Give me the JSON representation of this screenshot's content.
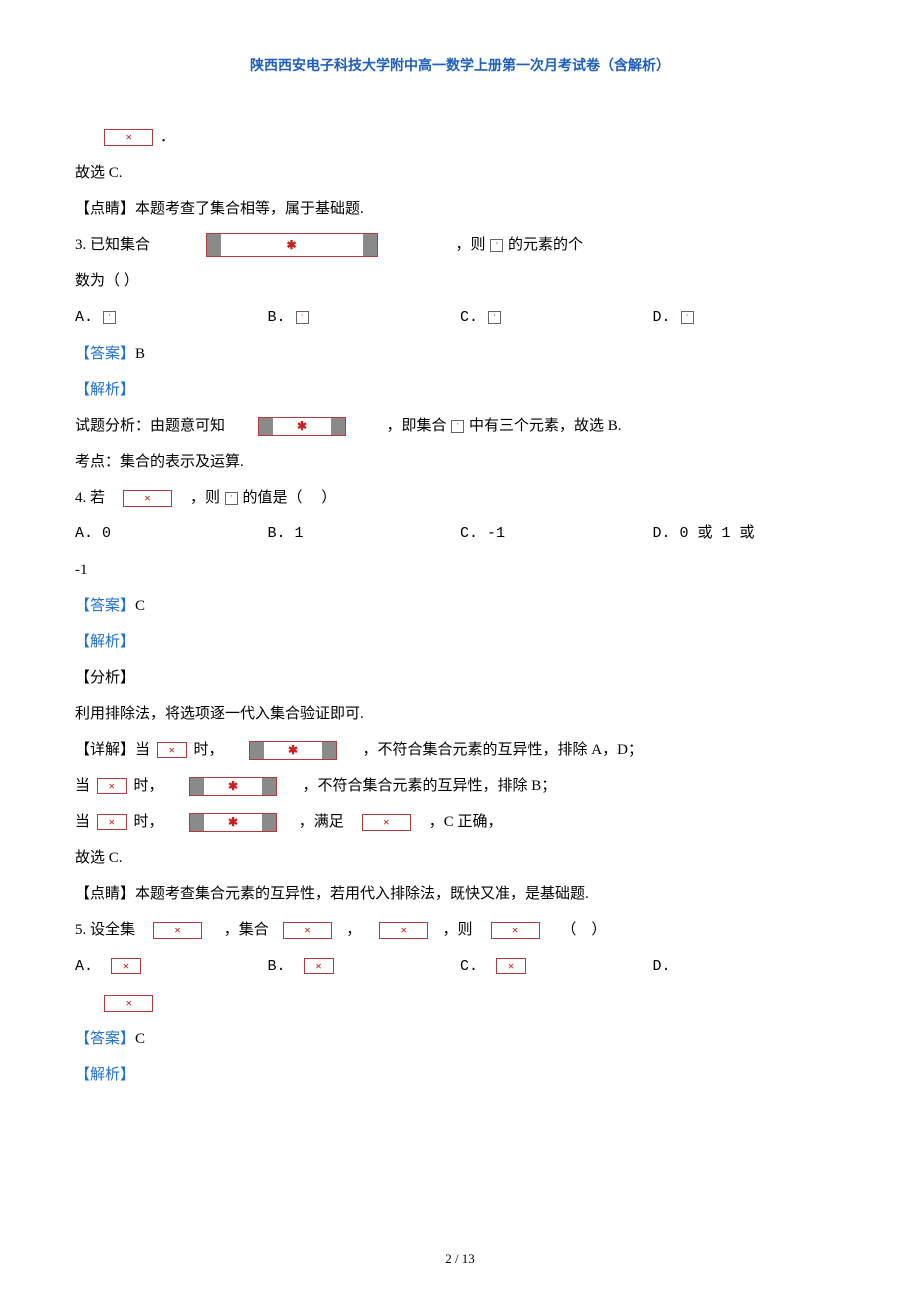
{
  "header": "陕西西安电子科技大学附中高一数学上册第一次月考试卷（含解析）",
  "prev_tail": {
    "line1_suffix": "．",
    "line2": "故选 C.",
    "line3": "【点睛】本题考查了集合相等，属于基础题."
  },
  "q3": {
    "stem_before": "3. 已知集合",
    "stem_after": "，则",
    "stem_after2": "的元素的个",
    "stem_line2": "数为（  ）",
    "options": {
      "a": "A.  ",
      "b": "B.  ",
      "c": "C.  ",
      "d": "D.  "
    },
    "answer_label": "【答案】",
    "answer_val": "B",
    "analysis_label": "【解析】",
    "analysis_l1_before": "试题分析：由题意可知",
    "analysis_l1_after": "，即集合",
    "analysis_l1_tail": "中有三个元素，故选 B.",
    "analysis_l2": "考点：集合的表示及运算."
  },
  "q4": {
    "stem_before": "4. 若",
    "stem_mid": "，则",
    "stem_mid2": "的值是（",
    "stem_tail": "）",
    "options": {
      "a": "A.  0",
      "b": "B.  1",
      "c": "C.  -1",
      "d": "D. 0 或 1 或"
    },
    "stem_opt_d_cont": "-1",
    "answer_label": "【答案】",
    "answer_val": "C",
    "analysis_label": "【解析】",
    "fenxi": "【分析】",
    "analysis_l1": "利用排除法，将选项逐一代入集合验证即可.",
    "detail_label": "【详解】",
    "detail_l1_before": "当",
    "detail_l1_mid": "时，",
    "detail_l1_after": "，不符合集合元素的互异性，排除 A，D；",
    "detail_l2_before": "当",
    "detail_l2_mid": "时，",
    "detail_l2_after": "，不符合集合元素的互异性，排除 B；",
    "detail_l3_before": "当",
    "detail_l3_mid": "时，",
    "detail_l3_mid2": "，满足",
    "detail_l3_after": "，C 正确，",
    "conclusion": "故选 C.",
    "dianjing": "【点睛】本题考查集合元素的互异性，若用代入排除法，既快又准，是基础题."
  },
  "q5": {
    "stem_before": "5. 设全集",
    "stem_mid1": "，集合",
    "stem_mid2": "，",
    "stem_mid3": "，则",
    "stem_tail": "（",
    "stem_tail2": "）",
    "options": {
      "a": "A.",
      "b": "B.",
      "c": "C.",
      "d": "D."
    },
    "answer_label": "【答案】",
    "answer_val": "C",
    "analysis_label": "【解析】"
  },
  "page_num": "2 / 13"
}
